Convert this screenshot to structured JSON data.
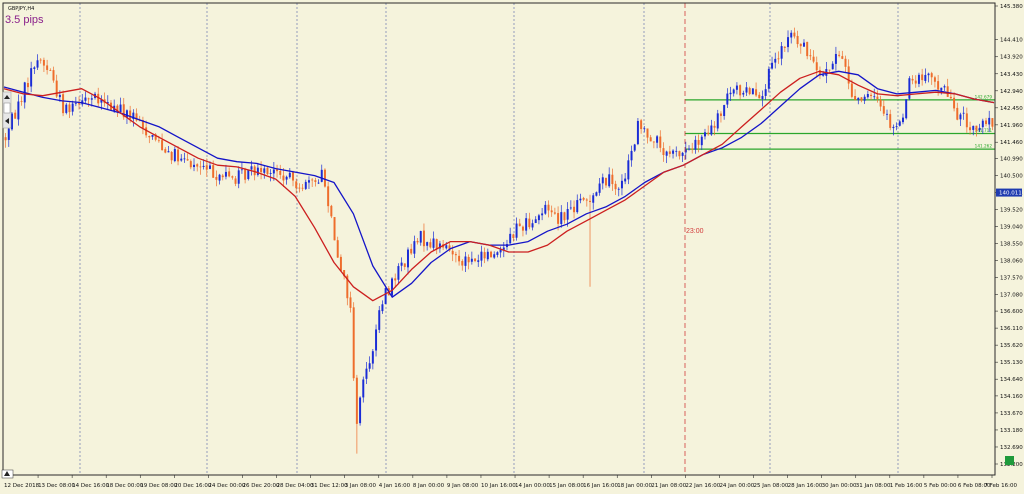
{
  "window": {
    "symbol_label": "GBPJPY,H4",
    "spread_label": "3.5 pips",
    "vline_time_label": "23:00"
  },
  "colors": {
    "background": "#f5f3dc",
    "frame": "#2a2a2a",
    "bull": "#1a2cd6",
    "bear": "#ee6d2c",
    "ma_fast": "#1414c8",
    "ma_slow": "#cc1f1f",
    "level": "#2ba62b",
    "vline_time": "#d23b3b",
    "vgrid": "#5563a6",
    "spread_text": "#8a1f8a"
  },
  "chart_data": {
    "type": "candlestick",
    "symbol": "GBPJPY",
    "timeframe": "H4",
    "ylim": [
      132.2,
      145.38
    ],
    "yticks": [
      145.38,
      144.41,
      143.92,
      143.43,
      142.94,
      142.45,
      141.96,
      141.46,
      140.99,
      140.5,
      140.011,
      139.52,
      139.04,
      138.55,
      138.06,
      137.57,
      137.08,
      136.6,
      136.11,
      135.62,
      135.13,
      134.64,
      134.16,
      133.67,
      133.18,
      132.69,
      132.2
    ],
    "current_price": 140.011,
    "current_price_label": "140.011",
    "xticks": [
      "12 Dec 2018",
      "13 Dec 08:00",
      "14 Dec 16:00",
      "18 Dec 00:00",
      "19 Dec 08:00",
      "20 Dec 16:00",
      "24 Dec 00:00",
      "26 Dec 20:00",
      "28 Dec 04:00",
      "31 Dec 12:00",
      "3 Jan 08:00",
      "4 Jan 16:00",
      "8 Jan 00:00",
      "9 Jan 08:00",
      "10 Jan 16:00",
      "14 Jan 00:00",
      "15 Jan 08:00",
      "16 Jan 16:00",
      "18 Jan 00:00",
      "21 Jan 08:00",
      "22 Jan 16:00",
      "24 Jan 00:00",
      "25 Jan 08:00",
      "28 Jan 16:00",
      "30 Jan 00:00",
      "31 Jan 08:00",
      "1 Feb 16:00",
      "5 Feb 00:00",
      "6 Feb 08:00",
      "7 Feb 16:00"
    ],
    "separator_dates": [
      "14 Dec",
      "18 Dec",
      "24 Dec",
      "28 Dec",
      "31 Dec",
      "4 Jan",
      "8 Jan",
      "14 Jan",
      "18 Jan",
      "22 Jan",
      "24 Jan",
      "25 Jan",
      "1 Feb"
    ],
    "time_line_label": "23:00",
    "levels": [
      {
        "price": 142.679,
        "label": "142.679"
      },
      {
        "price": 141.711,
        "label": "141.711"
      },
      {
        "price": 141.262,
        "label": "141.262"
      }
    ],
    "waypoints": [
      [
        0,
        141.6
      ],
      [
        5,
        142.8
      ],
      [
        10,
        143.9
      ],
      [
        14,
        143.5
      ],
      [
        18,
        142.4
      ],
      [
        24,
        142.8
      ],
      [
        38,
        142.3
      ],
      [
        44,
        141.8
      ],
      [
        55,
        140.9
      ],
      [
        62,
        140.7
      ],
      [
        72,
        140.4
      ],
      [
        80,
        140.8
      ],
      [
        88,
        140.4
      ],
      [
        96,
        140.2
      ],
      [
        99,
        140.6
      ],
      [
        101,
        139.8
      ],
      [
        104,
        138.3
      ],
      [
        108,
        136.7
      ],
      [
        109,
        134.6
      ],
      [
        110,
        133.5
      ],
      [
        111,
        134.2
      ],
      [
        115,
        135.6
      ],
      [
        118,
        136.9
      ],
      [
        123,
        137.8
      ],
      [
        130,
        138.7
      ],
      [
        138,
        138.4
      ],
      [
        145,
        138.0
      ],
      [
        154,
        138.3
      ],
      [
        160,
        139.0
      ],
      [
        166,
        139.3
      ],
      [
        170,
        139.6
      ],
      [
        173,
        139.3
      ],
      [
        178,
        139.6
      ],
      [
        182,
        139.8
      ],
      [
        188,
        140.4
      ],
      [
        193,
        140.2
      ],
      [
        196,
        141.1
      ],
      [
        198,
        141.9
      ],
      [
        203,
        141.6
      ],
      [
        207,
        141.0
      ],
      [
        212,
        141.2
      ],
      [
        217,
        141.4
      ],
      [
        222,
        141.9
      ],
      [
        227,
        142.9
      ],
      [
        233,
        143.0
      ],
      [
        237,
        142.9
      ],
      [
        240,
        143.6
      ],
      [
        244,
        144.2
      ],
      [
        246,
        144.6
      ],
      [
        249,
        144.2
      ],
      [
        253,
        143.9
      ],
      [
        256,
        143.4
      ],
      [
        259,
        143.7
      ],
      [
        262,
        144.0
      ],
      [
        265,
        142.8
      ],
      [
        270,
        142.7
      ],
      [
        274,
        142.6
      ],
      [
        277,
        142.0
      ],
      [
        280,
        141.9
      ],
      [
        283,
        143.2
      ],
      [
        288,
        143.3
      ],
      [
        293,
        143.1
      ],
      [
        298,
        142.3
      ],
      [
        302,
        141.9
      ],
      [
        306,
        141.9
      ],
      [
        309,
        142.0
      ]
    ],
    "series": [
      {
        "name": "MA fast",
        "values": [
          143.05,
          142.9,
          142.75,
          142.65,
          142.6,
          142.45,
          142.3,
          142.1,
          141.9,
          141.6,
          141.3,
          141.0,
          140.9,
          140.85,
          140.7,
          140.6,
          140.5,
          140.3,
          139.4,
          137.9,
          137.0,
          137.4,
          138.0,
          138.4,
          138.6,
          138.5,
          138.5,
          138.6,
          138.9,
          139.1,
          139.4,
          139.6,
          139.9,
          140.3,
          140.6,
          140.8,
          141.1,
          141.3,
          141.6,
          142.0,
          142.5,
          143.0,
          143.4,
          143.5,
          143.4,
          143.0,
          142.85,
          142.9,
          142.95,
          142.85,
          142.7,
          142.6
        ]
      },
      {
        "name": "MA slow",
        "values": [
          143.0,
          142.85,
          142.8,
          142.9,
          143.0,
          142.7,
          142.3,
          141.9,
          141.6,
          141.3,
          141.0,
          140.8,
          140.75,
          140.6,
          140.4,
          139.9,
          139.0,
          138.0,
          137.3,
          136.9,
          137.2,
          137.8,
          138.3,
          138.6,
          138.6,
          138.5,
          138.3,
          138.3,
          138.5,
          138.9,
          139.2,
          139.5,
          139.8,
          140.2,
          140.6,
          140.8,
          141.1,
          141.4,
          141.9,
          142.4,
          142.9,
          143.3,
          143.5,
          143.4,
          143.1,
          142.85,
          142.8,
          142.85,
          142.9,
          142.85,
          142.7,
          142.6
        ]
      }
    ],
    "xlabel": "",
    "ylabel": ""
  }
}
